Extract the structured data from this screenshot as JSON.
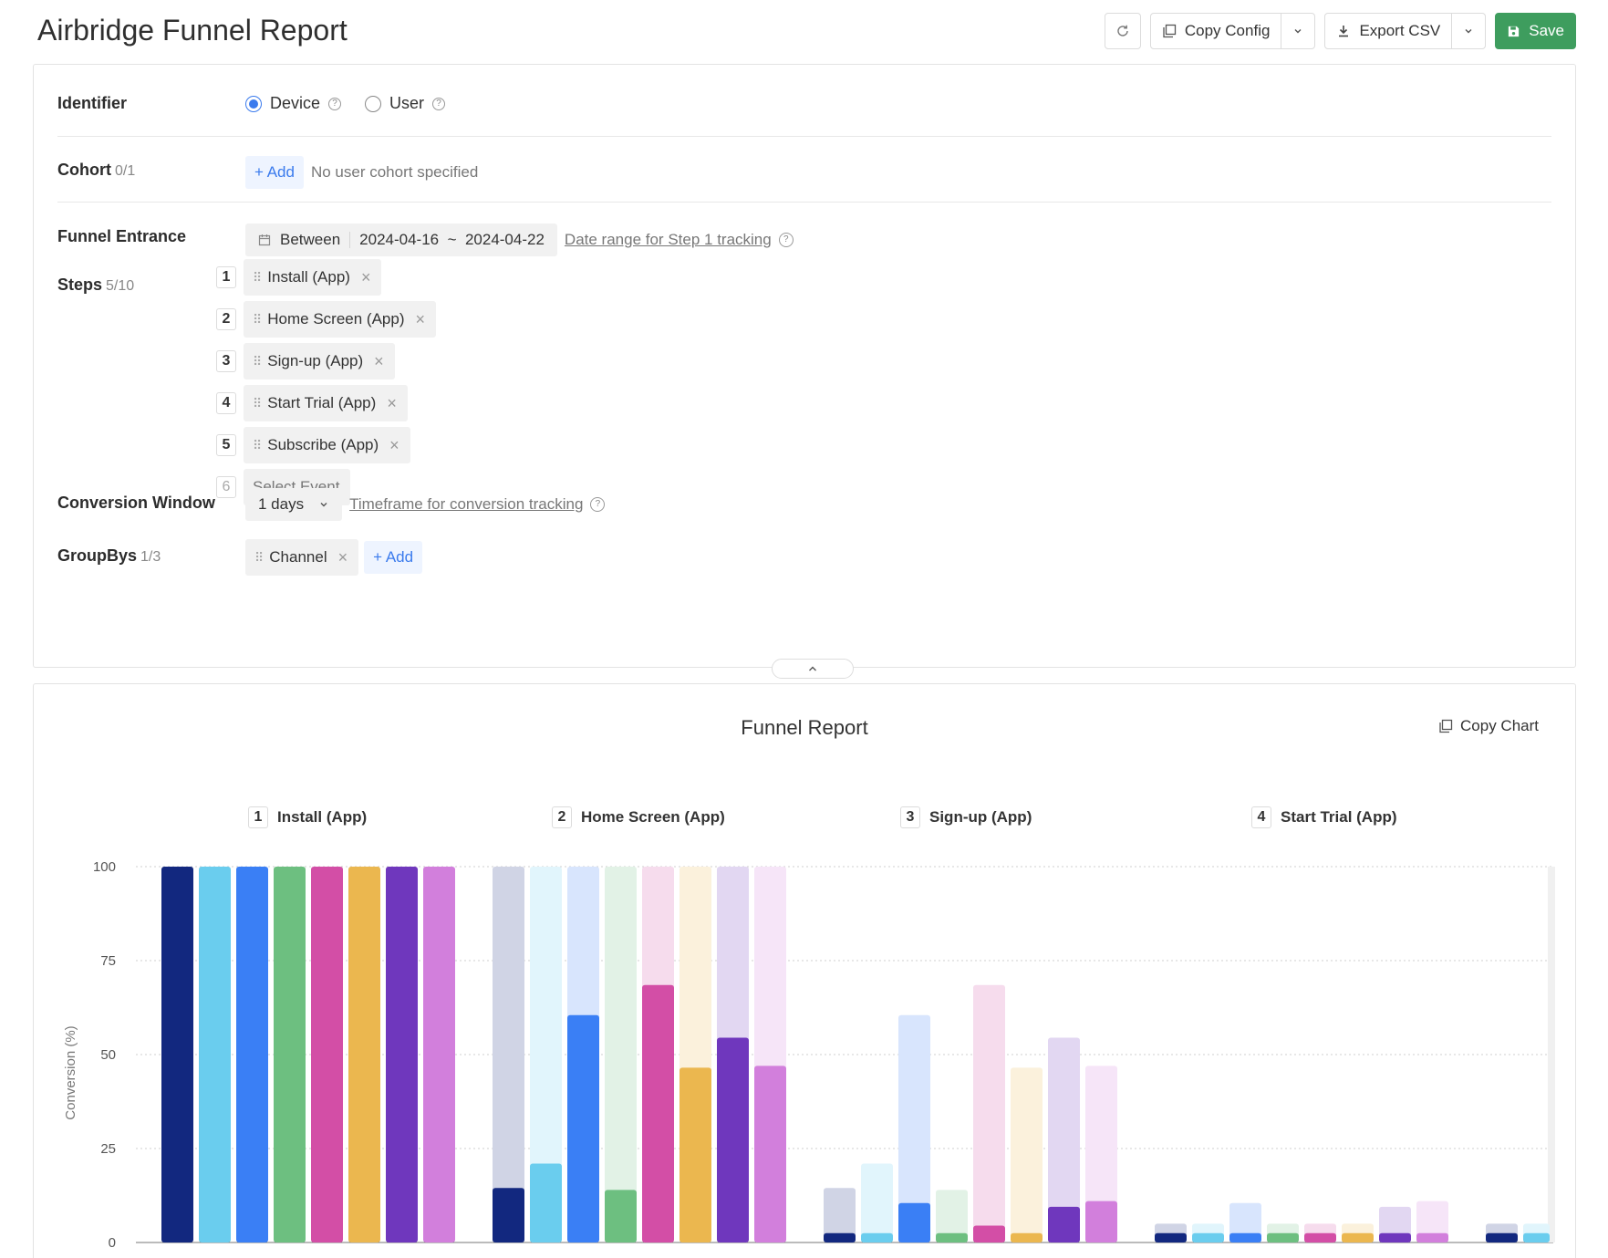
{
  "header": {
    "title": "Airbridge Funnel Report",
    "copy_config": "Copy Config",
    "export_csv": "Export CSV",
    "save": "Save"
  },
  "config": {
    "identifier": {
      "label": "Identifier",
      "options": [
        "Device",
        "User"
      ],
      "selected": "Device"
    },
    "cohort": {
      "label": "Cohort",
      "count": "0/1",
      "add": "+ Add",
      "empty_text": "No user cohort specified"
    },
    "funnel_entrance": {
      "label": "Funnel Entrance",
      "mode": "Between",
      "range": "2024-04-16  ~  2024-04-22",
      "hint": "Date range for Step 1 tracking"
    },
    "steps": {
      "label": "Steps",
      "count": "5/10",
      "items": [
        {
          "num": "1",
          "name": "Install (App)"
        },
        {
          "num": "2",
          "name": "Home Screen (App)"
        },
        {
          "num": "3",
          "name": "Sign-up (App)"
        },
        {
          "num": "4",
          "name": "Start Trial (App)"
        },
        {
          "num": "5",
          "name": "Subscribe (App)"
        }
      ],
      "next_num": "6",
      "placeholder": "Select Event"
    },
    "conversion_window": {
      "label": "Conversion Window",
      "value": "1 days",
      "hint": "Timeframe for conversion tracking"
    },
    "groupbys": {
      "label": "GroupBys",
      "count": "1/3",
      "items": [
        "Channel"
      ],
      "add": "+ Add"
    }
  },
  "report": {
    "title": "Funnel Report",
    "copy_chart": "Copy Chart"
  },
  "chart_data": {
    "type": "bar",
    "ylabel": "Conversion (%)",
    "ylim": [
      0,
      100
    ],
    "yticks": [
      0,
      25,
      50,
      75,
      100
    ],
    "categories": [
      {
        "num": "1",
        "name": "Install (App)"
      },
      {
        "num": "2",
        "name": "Home Screen (App)"
      },
      {
        "num": "3",
        "name": "Sign-up (App)"
      },
      {
        "num": "4",
        "name": "Start Trial (App)"
      }
    ],
    "colors": [
      "#12287f",
      "#6acdee",
      "#3a7ff5",
      "#6dbf80",
      "#d34ea6",
      "#ebb74f",
      "#6f37bd",
      "#d27fdc"
    ],
    "series": [
      {
        "values": [
          100,
          14.5,
          2.5,
          2.5
        ],
        "prev": [
          100,
          100,
          14.5,
          5
        ]
      },
      {
        "values": [
          100,
          21,
          2.5,
          2.5
        ],
        "prev": [
          100,
          100,
          21,
          5
        ]
      },
      {
        "values": [
          100,
          60.5,
          10.5,
          2.5
        ],
        "prev": [
          100,
          100,
          60.5,
          10.5
        ]
      },
      {
        "values": [
          100,
          14,
          2.5,
          2.5
        ],
        "prev": [
          100,
          100,
          14,
          5
        ]
      },
      {
        "values": [
          100,
          68.5,
          4.5,
          2.5
        ],
        "prev": [
          100,
          100,
          68.5,
          5
        ]
      },
      {
        "values": [
          100,
          46.5,
          2.5,
          2.5
        ],
        "prev": [
          100,
          100,
          46.5,
          5
        ]
      },
      {
        "values": [
          100,
          54.5,
          9.5,
          2.5
        ],
        "prev": [
          100,
          100,
          54.5,
          9.5
        ]
      },
      {
        "values": [
          100,
          47,
          11,
          2.5
        ],
        "prev": [
          100,
          100,
          47,
          11
        ]
      }
    ],
    "partial_next_group": {
      "values": [
        2.5,
        2.5
      ],
      "prev": [
        5,
        5
      ]
    }
  }
}
